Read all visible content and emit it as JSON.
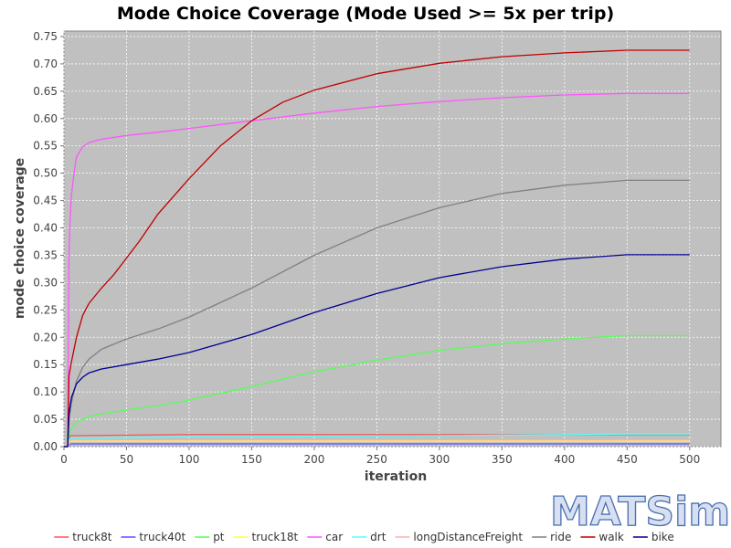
{
  "chart_data": {
    "type": "line",
    "title": "Mode Choice Coverage (Mode Used >= 5x per trip)",
    "xlabel": "iteration",
    "ylabel": "mode choice coverage",
    "xlim": [
      0,
      525
    ],
    "ylim": [
      0,
      0.76
    ],
    "x_ticks": [
      0,
      50,
      100,
      150,
      200,
      250,
      300,
      350,
      400,
      450,
      500
    ],
    "y_ticks": [
      "0.00",
      "0.05",
      "0.10",
      "0.15",
      "0.20",
      "0.25",
      "0.30",
      "0.35",
      "0.40",
      "0.45",
      "0.50",
      "0.55",
      "0.60",
      "0.65",
      "0.70",
      "0.75"
    ],
    "grid": true,
    "plot_background": "#c0c0c0",
    "legend_position": "bottom",
    "series": [
      {
        "name": "truck8t",
        "color": "#ff5555",
        "points": [
          [
            0,
            0
          ],
          [
            3,
            0
          ],
          [
            5,
            0.02
          ],
          [
            100,
            0.022
          ],
          [
            500,
            0.022
          ]
        ]
      },
      {
        "name": "truck40t",
        "color": "#5555ff",
        "points": [
          [
            0,
            0
          ],
          [
            3,
            0
          ],
          [
            5,
            0.005
          ],
          [
            500,
            0.005
          ]
        ]
      },
      {
        "name": "pt",
        "color": "#55ff55",
        "points": [
          [
            0,
            0
          ],
          [
            3,
            0
          ],
          [
            5,
            0.03
          ],
          [
            10,
            0.045
          ],
          [
            20,
            0.055
          ],
          [
            30,
            0.06
          ],
          [
            50,
            0.067
          ],
          [
            75,
            0.075
          ],
          [
            100,
            0.085
          ],
          [
            150,
            0.11
          ],
          [
            200,
            0.137
          ],
          [
            250,
            0.158
          ],
          [
            300,
            0.176
          ],
          [
            350,
            0.188
          ],
          [
            400,
            0.197
          ],
          [
            450,
            0.203
          ],
          [
            500,
            0.203
          ]
        ]
      },
      {
        "name": "truck18t",
        "color": "#ffff55",
        "points": [
          [
            0,
            0
          ],
          [
            3,
            0
          ],
          [
            5,
            0.01
          ],
          [
            500,
            0.01
          ]
        ]
      },
      {
        "name": "car",
        "color": "#ff55ff",
        "points": [
          [
            0,
            0
          ],
          [
            3,
            0
          ],
          [
            4,
            0.35
          ],
          [
            5,
            0.42
          ],
          [
            6,
            0.46
          ],
          [
            8,
            0.5
          ],
          [
            10,
            0.53
          ],
          [
            15,
            0.548
          ],
          [
            20,
            0.556
          ],
          [
            30,
            0.562
          ],
          [
            50,
            0.569
          ],
          [
            75,
            0.575
          ],
          [
            100,
            0.582
          ],
          [
            150,
            0.596
          ],
          [
            200,
            0.61
          ],
          [
            250,
            0.622
          ],
          [
            300,
            0.631
          ],
          [
            350,
            0.638
          ],
          [
            400,
            0.643
          ],
          [
            450,
            0.646
          ],
          [
            500,
            0.646
          ]
        ]
      },
      {
        "name": "drt",
        "color": "#55ffff",
        "points": [
          [
            0,
            0
          ],
          [
            3,
            0
          ],
          [
            5,
            0.015
          ],
          [
            100,
            0.018
          ],
          [
            300,
            0.02
          ],
          [
            450,
            0.023
          ],
          [
            500,
            0.023
          ]
        ]
      },
      {
        "name": "longDistanceFreight",
        "color": "#ffafaf",
        "points": [
          [
            0,
            0
          ],
          [
            3,
            0
          ],
          [
            5,
            0.012
          ],
          [
            500,
            0.012
          ]
        ]
      },
      {
        "name": "ride",
        "color": "#808080",
        "points": [
          [
            0,
            0
          ],
          [
            3,
            0
          ],
          [
            4,
            0.05
          ],
          [
            6,
            0.08
          ],
          [
            10,
            0.12
          ],
          [
            15,
            0.145
          ],
          [
            20,
            0.16
          ],
          [
            30,
            0.178
          ],
          [
            50,
            0.197
          ],
          [
            75,
            0.215
          ],
          [
            100,
            0.237
          ],
          [
            150,
            0.29
          ],
          [
            200,
            0.35
          ],
          [
            250,
            0.4
          ],
          [
            300,
            0.437
          ],
          [
            350,
            0.463
          ],
          [
            400,
            0.478
          ],
          [
            450,
            0.487
          ],
          [
            500,
            0.487
          ]
        ]
      },
      {
        "name": "walk",
        "color": "#c00000",
        "points": [
          [
            0,
            0
          ],
          [
            3,
            0
          ],
          [
            4,
            0.13
          ],
          [
            6,
            0.155
          ],
          [
            10,
            0.2
          ],
          [
            15,
            0.24
          ],
          [
            20,
            0.262
          ],
          [
            30,
            0.29
          ],
          [
            40,
            0.315
          ],
          [
            50,
            0.345
          ],
          [
            60,
            0.375
          ],
          [
            75,
            0.425
          ],
          [
            100,
            0.49
          ],
          [
            125,
            0.55
          ],
          [
            150,
            0.596
          ],
          [
            175,
            0.63
          ],
          [
            200,
            0.652
          ],
          [
            250,
            0.682
          ],
          [
            300,
            0.701
          ],
          [
            350,
            0.713
          ],
          [
            400,
            0.72
          ],
          [
            450,
            0.725
          ],
          [
            500,
            0.725
          ]
        ]
      },
      {
        "name": "bike",
        "color": "#000090",
        "points": [
          [
            0,
            0
          ],
          [
            3,
            0
          ],
          [
            4,
            0.06
          ],
          [
            6,
            0.09
          ],
          [
            10,
            0.115
          ],
          [
            15,
            0.127
          ],
          [
            20,
            0.135
          ],
          [
            30,
            0.142
          ],
          [
            50,
            0.15
          ],
          [
            75,
            0.16
          ],
          [
            100,
            0.172
          ],
          [
            150,
            0.205
          ],
          [
            200,
            0.245
          ],
          [
            250,
            0.28
          ],
          [
            300,
            0.309
          ],
          [
            350,
            0.329
          ],
          [
            400,
            0.343
          ],
          [
            450,
            0.351
          ],
          [
            500,
            0.351
          ]
        ]
      }
    ]
  },
  "logo_text": "MATSim"
}
